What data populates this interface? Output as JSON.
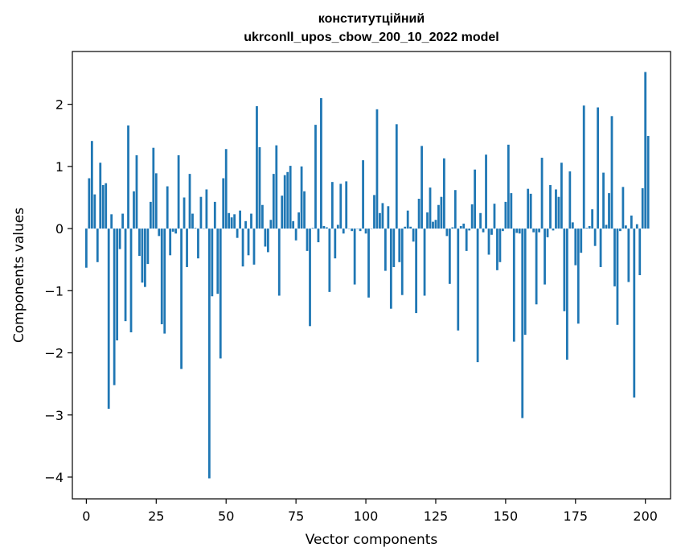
{
  "chart_data": {
    "type": "bar",
    "title": "конститутційний",
    "subtitle": "ukrconll_upos_cbow_200_10_2022 model",
    "xlabel": "Vector components",
    "ylabel": "Components values",
    "xlim": [
      -5,
      209
    ],
    "ylim": [
      -4.35,
      2.85
    ],
    "xticks": [
      0,
      25,
      50,
      75,
      100,
      125,
      150,
      175,
      200
    ],
    "yticks": [
      -4,
      -3,
      -2,
      -1,
      0,
      1,
      2
    ],
    "ytick_labels": [
      "−4",
      "−3",
      "−2",
      "−1",
      "0",
      "1",
      "2"
    ],
    "grid": false,
    "bar_color": "#1f77b4",
    "values": [
      -0.63,
      0.81,
      1.41,
      0.55,
      -0.54,
      1.06,
      0.7,
      0.73,
      -2.9,
      0.23,
      -2.52,
      -1.8,
      -0.33,
      0.24,
      -1.49,
      1.66,
      -1.67,
      0.6,
      1.18,
      -0.44,
      -0.87,
      -0.94,
      -0.57,
      0.43,
      1.3,
      0.89,
      -0.12,
      -1.54,
      -1.69,
      0.68,
      -0.43,
      -0.05,
      -0.08,
      1.18,
      -2.26,
      0.5,
      -0.62,
      0.88,
      0.24,
      0.01,
      -0.48,
      0.51,
      0.0,
      0.63,
      -4.02,
      -1.09,
      0.43,
      -1.05,
      -2.09,
      0.81,
      1.28,
      0.25,
      0.18,
      0.23,
      -0.15,
      0.29,
      -0.61,
      0.12,
      -0.43,
      0.24,
      -0.58,
      1.97,
      1.31,
      0.38,
      -0.29,
      -0.38,
      0.14,
      0.88,
      1.34,
      -1.08,
      0.53,
      0.86,
      0.91,
      1.01,
      0.12,
      -0.19,
      0.26,
      1.0,
      0.6,
      -0.36,
      -1.57,
      0.01,
      1.67,
      -0.22,
      2.1,
      0.04,
      0.02,
      -1.02,
      0.75,
      -0.48,
      0.06,
      0.72,
      -0.08,
      0.76,
      0.0,
      -0.04,
      -0.9,
      0.0,
      -0.04,
      1.1,
      -0.08,
      -1.11,
      0.0,
      0.54,
      1.92,
      0.25,
      0.41,
      -0.68,
      0.36,
      -1.29,
      -0.62,
      1.68,
      -0.54,
      -1.07,
      0.03,
      0.29,
      0.03,
      -0.21,
      -1.36,
      0.48,
      1.33,
      -1.08,
      0.26,
      0.66,
      0.11,
      0.14,
      0.38,
      0.51,
      1.13,
      -0.12,
      -0.89,
      0.02,
      0.62,
      -1.64,
      0.04,
      0.08,
      -0.36,
      -0.03,
      0.39,
      0.95,
      -2.15,
      0.25,
      -0.06,
      1.19,
      -0.42,
      -0.1,
      0.4,
      -0.67,
      -0.54,
      -0.04,
      0.43,
      1.35,
      0.57,
      -1.82,
      -0.07,
      -0.08,
      -3.05,
      -1.71,
      0.64,
      0.56,
      -0.06,
      -1.22,
      -0.06,
      1.14,
      -0.9,
      -0.14,
      0.7,
      -0.03,
      0.63,
      0.51,
      1.06,
      -1.33,
      -2.11,
      0.92,
      0.1,
      -0.59,
      -1.53,
      -0.39,
      1.98,
      0.01,
      0.04,
      0.31,
      -0.28,
      1.95,
      -0.62,
      0.9,
      0.06,
      0.57,
      1.81,
      -0.93,
      -1.55,
      -0.04,
      0.67,
      0.05,
      -0.86,
      0.21,
      -2.72,
      0.07,
      -0.75,
      0.65,
      2.52,
      1.49
    ]
  }
}
